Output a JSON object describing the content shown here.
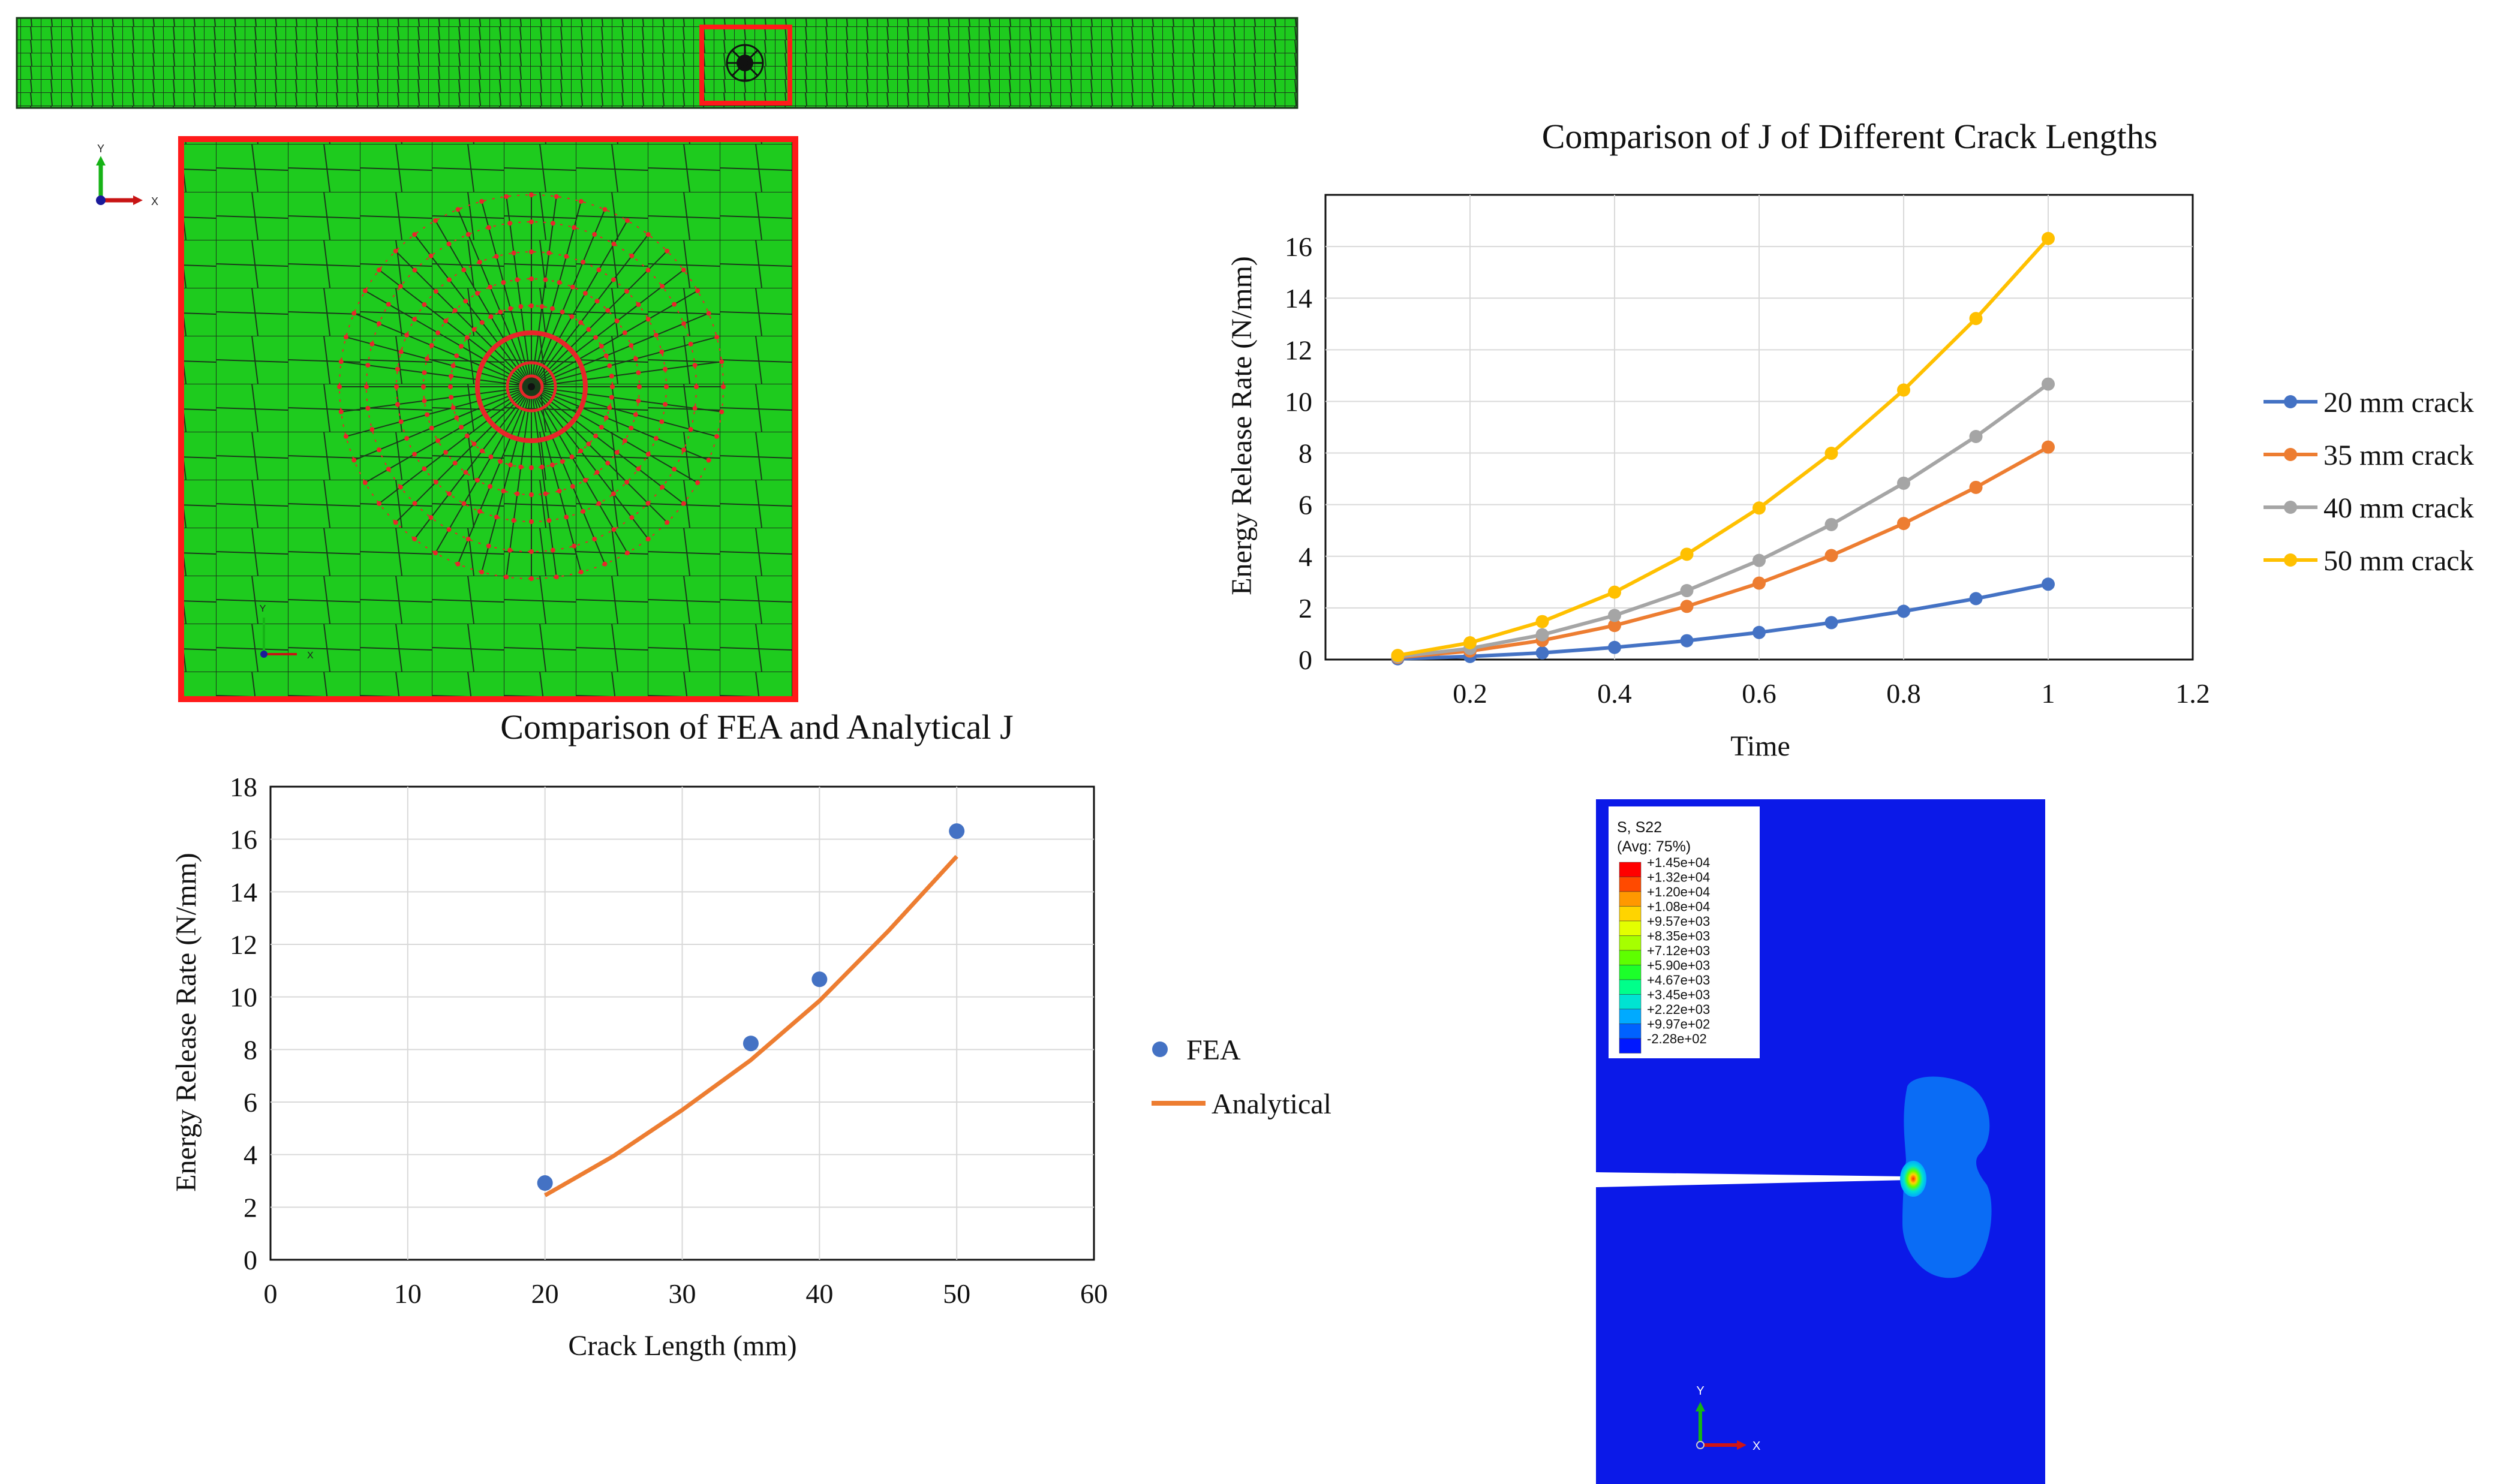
{
  "figure_panels": {
    "mesh_strip": {
      "fill": "#1ecb1e",
      "mesh_line": "#222222",
      "zoom_box": "#ff1a1a"
    },
    "mesh_zoom": {
      "fill": "#1ecb1e",
      "contour_color": "#e8262a",
      "border_color": "#ff1a1a",
      "triad": {
        "y_label": "Y",
        "x_label": "X"
      },
      "inset_triad": {
        "y_label": "Y",
        "x_label": "X"
      }
    },
    "contour_plot": {
      "background": "#0b19e8",
      "legend_title": "S, S22",
      "legend_subtitle": "(Avg: 75%)",
      "legend_values": [
        "+1.45e+04",
        "+1.32e+04",
        "+1.20e+04",
        "+1.08e+04",
        "+9.57e+03",
        "+8.35e+03",
        "+7.12e+03",
        "+5.90e+03",
        "+4.67e+03",
        "+3.45e+03",
        "+2.22e+03",
        "+9.97e+02",
        "-2.28e+02"
      ],
      "legend_colors": [
        "#ff0000",
        "#ff4a00",
        "#ff9800",
        "#ffd400",
        "#e4ff00",
        "#a6ff00",
        "#5eff00",
        "#1cff2a",
        "#00ff8a",
        "#00e3d2",
        "#00aaff",
        "#0062ff",
        "#0018ff"
      ],
      "triad": {
        "y_label": "Y",
        "x_label": "X"
      }
    }
  },
  "chart_data": [
    {
      "type": "line",
      "title": "Comparison of J of Different Crack Lengths",
      "xlabel": "Time",
      "ylabel": "Energy Release Rate (N/mm)",
      "xlim": [
        0,
        1.2
      ],
      "ylim": [
        0,
        18
      ],
      "x_ticks": [
        "0.2",
        "0.4",
        "0.6",
        "0.8",
        "1",
        "1.2"
      ],
      "y_ticks": [
        "0",
        "2",
        "4",
        "6",
        "8",
        "10",
        "12",
        "14",
        "16"
      ],
      "grid": true,
      "legend_position": "right",
      "x": [
        0.1,
        0.2,
        0.3,
        0.4,
        0.5,
        0.6,
        0.7,
        0.8,
        0.9,
        1.0
      ],
      "series": [
        {
          "name": "20 mm crack",
          "color": "#4472c4",
          "values": [
            0.03,
            0.12,
            0.26,
            0.47,
            0.73,
            1.05,
            1.43,
            1.87,
            2.36,
            2.92
          ]
        },
        {
          "name": "35 mm crack",
          "color": "#ed7d31",
          "values": [
            0.08,
            0.33,
            0.74,
            1.32,
            2.06,
            2.96,
            4.03,
            5.27,
            6.67,
            8.23
          ]
        },
        {
          "name": "40 mm crack",
          "color": "#a5a5a5",
          "values": [
            0.11,
            0.43,
            0.96,
            1.71,
            2.67,
            3.84,
            5.23,
            6.83,
            8.64,
            10.67
          ]
        },
        {
          "name": "50 mm crack",
          "color": "#ffc000",
          "values": [
            0.16,
            0.65,
            1.47,
            2.61,
            4.08,
            5.87,
            7.99,
            10.44,
            13.21,
            16.31
          ]
        }
      ]
    },
    {
      "type": "scatter",
      "title": "Comparison of FEA and Analytical J",
      "xlabel": "Crack Length (mm)",
      "ylabel": "Energy Release Rate (N/mm)",
      "xlim": [
        0,
        60
      ],
      "ylim": [
        0,
        18
      ],
      "x_ticks": [
        "0",
        "10",
        "20",
        "30",
        "40",
        "50",
        "60"
      ],
      "y_ticks": [
        "0",
        "2",
        "4",
        "6",
        "8",
        "10",
        "12",
        "14",
        "16",
        "18"
      ],
      "grid": true,
      "legend_position": "right",
      "series": [
        {
          "name": "FEA",
          "style": "markers",
          "color": "#4472c4",
          "x": [
            20,
            35,
            40,
            50
          ],
          "values": [
            2.92,
            8.23,
            10.67,
            16.31
          ]
        },
        {
          "name": "Analytical",
          "style": "line",
          "color": "#ed7d31",
          "x": [
            20,
            25,
            30,
            35,
            40,
            45,
            50
          ],
          "values": [
            2.45,
            3.95,
            5.7,
            7.6,
            9.85,
            12.5,
            15.35
          ]
        }
      ]
    }
  ]
}
